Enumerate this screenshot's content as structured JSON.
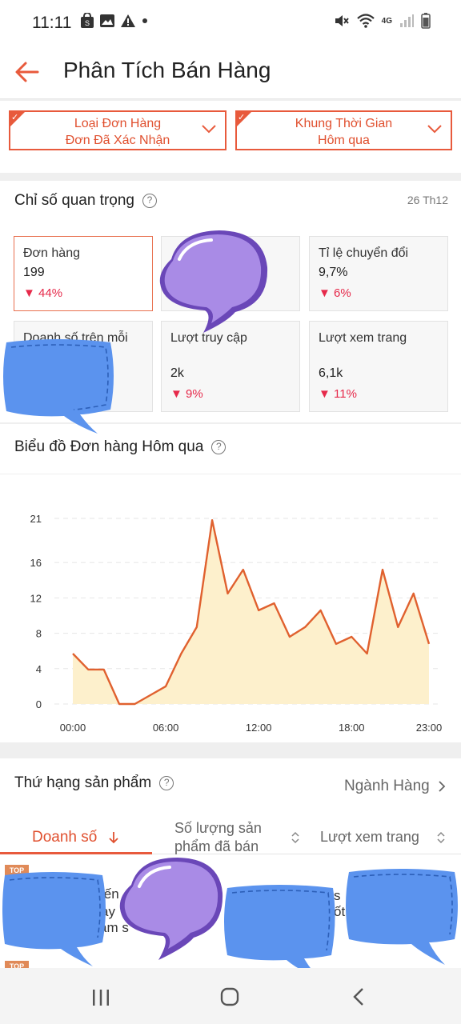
{
  "status": {
    "time": "11:11",
    "network": "4G"
  },
  "appbar": {
    "title": "Phân Tích Bán Hàng"
  },
  "filters": [
    {
      "line1": "Loại Đơn Hàng",
      "line2": "Đơn Đã Xác Nhận"
    },
    {
      "line1": "Khung Thời Gian",
      "line2": "Hôm qua"
    }
  ],
  "metrics": {
    "title": "Chỉ số quan trọng",
    "date": "26 Th12",
    "cards": [
      {
        "label": "Đơn hàng",
        "value": "199",
        "change": "44%"
      },
      {
        "label": "Tỉ lệ chuyển đổi",
        "value": "9,7%",
        "change": "6%"
      },
      {
        "label": "Doanh số trên mỗi",
        "value": "",
        "change": ""
      },
      {
        "label": "Lượt truy cập",
        "value": "2k",
        "change": "9%"
      },
      {
        "label": "Lượt xem trang",
        "value": "6,1k",
        "change": "11%"
      }
    ]
  },
  "chart_section": {
    "title": "Biểu đồ Đơn hàng Hôm qua"
  },
  "chart_data": {
    "type": "area",
    "title": "Biểu đồ Đơn hàng Hôm qua",
    "x": [
      0,
      1,
      2,
      3,
      4,
      5,
      6,
      7,
      8,
      9,
      10,
      11,
      12,
      13,
      14,
      15,
      16,
      17,
      18,
      19,
      20,
      21,
      22,
      23
    ],
    "x_tick_labels": [
      "00:00",
      "06:00",
      "12:00",
      "18:00",
      "23:00"
    ],
    "x_tick_positions": [
      0,
      6,
      12,
      18,
      23
    ],
    "values": [
      5.7,
      3.9,
      3.9,
      0,
      0,
      1,
      2,
      5.7,
      8.7,
      20.8,
      12.5,
      15.2,
      10.6,
      11.4,
      7.6,
      8.7,
      10.6,
      6.8,
      7.6,
      5.7,
      15.2,
      8.7,
      12.5,
      6.8
    ],
    "y_ticks": [
      0,
      4,
      8,
      12,
      16,
      21
    ],
    "ylim": [
      0,
      21
    ],
    "grid": true,
    "line_color": "#e0612f",
    "fill_color": "#fdf0cc"
  },
  "ranking": {
    "title": "Thứ hạng sản phẩm",
    "category_link": "Ngành Hàng",
    "tabs": {
      "revenue": "Doanh số",
      "quantity_line1": "Số lượng sản",
      "quantity_line2": "phẩm đã bán",
      "pageviews": "Lượt xem trang"
    },
    "badge": "TOP",
    "row_fragments": [
      "iến",
      "ày",
      "ảm s",
      "ốt c",
      "s"
    ]
  },
  "colors": {
    "accent": "#e85a3c",
    "down": "#e6294a",
    "sticker_purple": "#a98be6",
    "sticker_blue": "#5b93ee"
  }
}
